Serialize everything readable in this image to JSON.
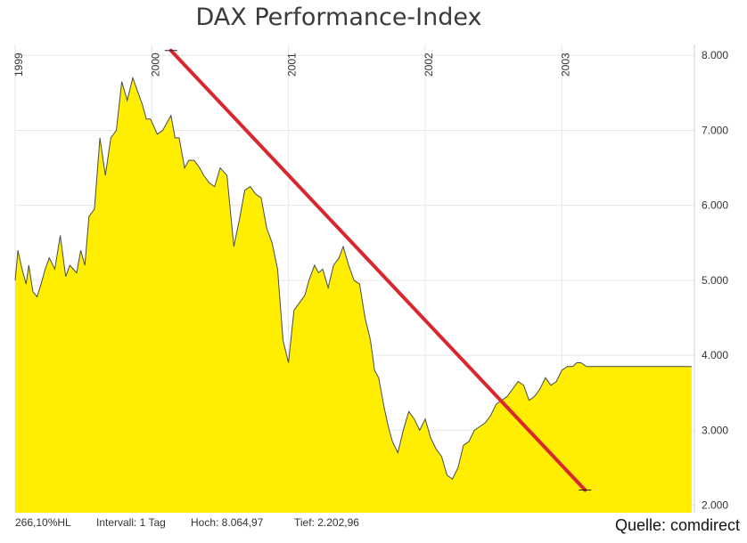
{
  "chart_data": {
    "type": "area",
    "title": "DAX Performance-Index",
    "year_labels": [
      "1999",
      "2000",
      "2001",
      "2002",
      "2003"
    ],
    "y_ticks": [
      "2.000",
      "3.000",
      "4.000",
      "5.000",
      "6.000",
      "7.000",
      "8.000"
    ],
    "y_tick_values": [
      2000,
      3000,
      4000,
      5000,
      6000,
      7000,
      8000
    ],
    "ylim": [
      1900,
      8050
    ],
    "xlim": [
      1999.0,
      2003.97
    ],
    "grid": true,
    "fill_color": "#ffee00",
    "line_color": "#4a4a4a",
    "trend_color": "#d9272e",
    "series": [
      {
        "x": [
          1999.0,
          1999.02,
          1999.05,
          1999.08,
          1999.1,
          1999.13,
          1999.16,
          1999.19,
          1999.22,
          1999.25,
          1999.29,
          1999.33,
          1999.37,
          1999.4,
          1999.45,
          1999.48,
          1999.51,
          1999.54,
          1999.58,
          1999.62,
          1999.66,
          1999.7,
          1999.74,
          1999.78,
          1999.82,
          1999.86,
          1999.9,
          1999.93,
          1999.96,
          1999.99,
          2000.04,
          2000.08,
          2000.11,
          2000.14,
          2000.17,
          2000.2,
          2000.24,
          2000.27,
          2000.31,
          2000.35,
          2000.38,
          2000.42,
          2000.46,
          2000.5,
          2000.55,
          2000.6,
          2000.64,
          2000.68,
          2000.72,
          2000.76,
          2000.8,
          2000.84,
          2000.88,
          2000.92,
          2000.96,
          2001.0,
          2001.04,
          2001.08,
          2001.12,
          2001.15,
          2001.19,
          2001.22,
          2001.25,
          2001.29,
          2001.33,
          2001.37,
          2001.4,
          2001.44,
          2001.48,
          2001.52,
          2001.56,
          2001.6,
          2001.63,
          2001.66,
          2001.68,
          2001.7,
          2001.73,
          2001.76,
          2001.8,
          2001.84,
          2001.88,
          2001.92,
          2001.96,
          2002.0,
          2002.04,
          2002.08,
          2002.12,
          2002.16,
          2002.2,
          2002.24,
          2002.28,
          2002.32,
          2002.36,
          2002.4,
          2002.44,
          2002.48,
          2002.52,
          2002.56,
          2002.6,
          2002.64,
          2002.68,
          2002.72,
          2002.76,
          2002.8,
          2002.84,
          2002.88,
          2002.92,
          2002.96,
          2003.0,
          2003.04,
          2003.08,
          2003.11,
          2003.14,
          2003.18,
          2003.22,
          2003.26,
          2003.3,
          2003.35,
          2003.4,
          2003.45,
          2003.5,
          2003.55,
          2003.6,
          2003.65,
          2003.7,
          2003.75,
          2003.8,
          2003.85,
          2003.9,
          2003.95
        ],
        "y": [
          5000,
          5400,
          5150,
          4950,
          5200,
          4850,
          4780,
          4950,
          5150,
          5300,
          5150,
          5600,
          5050,
          5200,
          5100,
          5400,
          5200,
          5850,
          5950,
          6900,
          6400,
          6900,
          7000,
          7650,
          7400,
          7700,
          7500,
          7350,
          7150,
          7150,
          6950,
          7000,
          7100,
          7200,
          6900,
          6900,
          6500,
          6600,
          6600,
          6500,
          6400,
          6300,
          6250,
          6500,
          6400,
          5450,
          5800,
          6200,
          6250,
          6150,
          6100,
          5700,
          5500,
          5150,
          4200,
          3900,
          4600,
          4700,
          4800,
          5000,
          5200,
          5100,
          5150,
          4900,
          5200,
          5300,
          5450,
          5200,
          5000,
          4950,
          4500,
          4200,
          3800,
          3700,
          3500,
          3300,
          3050,
          2850,
          2700,
          3000,
          3250,
          3150,
          3000,
          3150,
          2900,
          2750,
          2650,
          2400,
          2350,
          2500,
          2800,
          2850,
          3000,
          3050,
          3100,
          3200,
          3350,
          3400,
          3450,
          3550,
          3650,
          3600,
          3400,
          3450,
          3550,
          3700,
          3600,
          3650,
          3800,
          3850,
          3850,
          3900,
          3900,
          3850,
          3850,
          3850,
          3850,
          3850,
          3850,
          3850,
          3850,
          3850,
          3850,
          3850,
          3850,
          3850,
          3850,
          3850,
          3850,
          3850
        ]
      }
    ],
    "trend_line": {
      "x": [
        2000.14,
        2003.17
      ],
      "y": [
        8064.97,
        2202.96
      ]
    }
  },
  "footer": {
    "performance": "266,10%HL",
    "interval": "Intervall: 1 Tag",
    "high": "Hoch:  8.064,97",
    "low": "Tief:  2.202,96"
  },
  "source": "Quelle: comdirect"
}
